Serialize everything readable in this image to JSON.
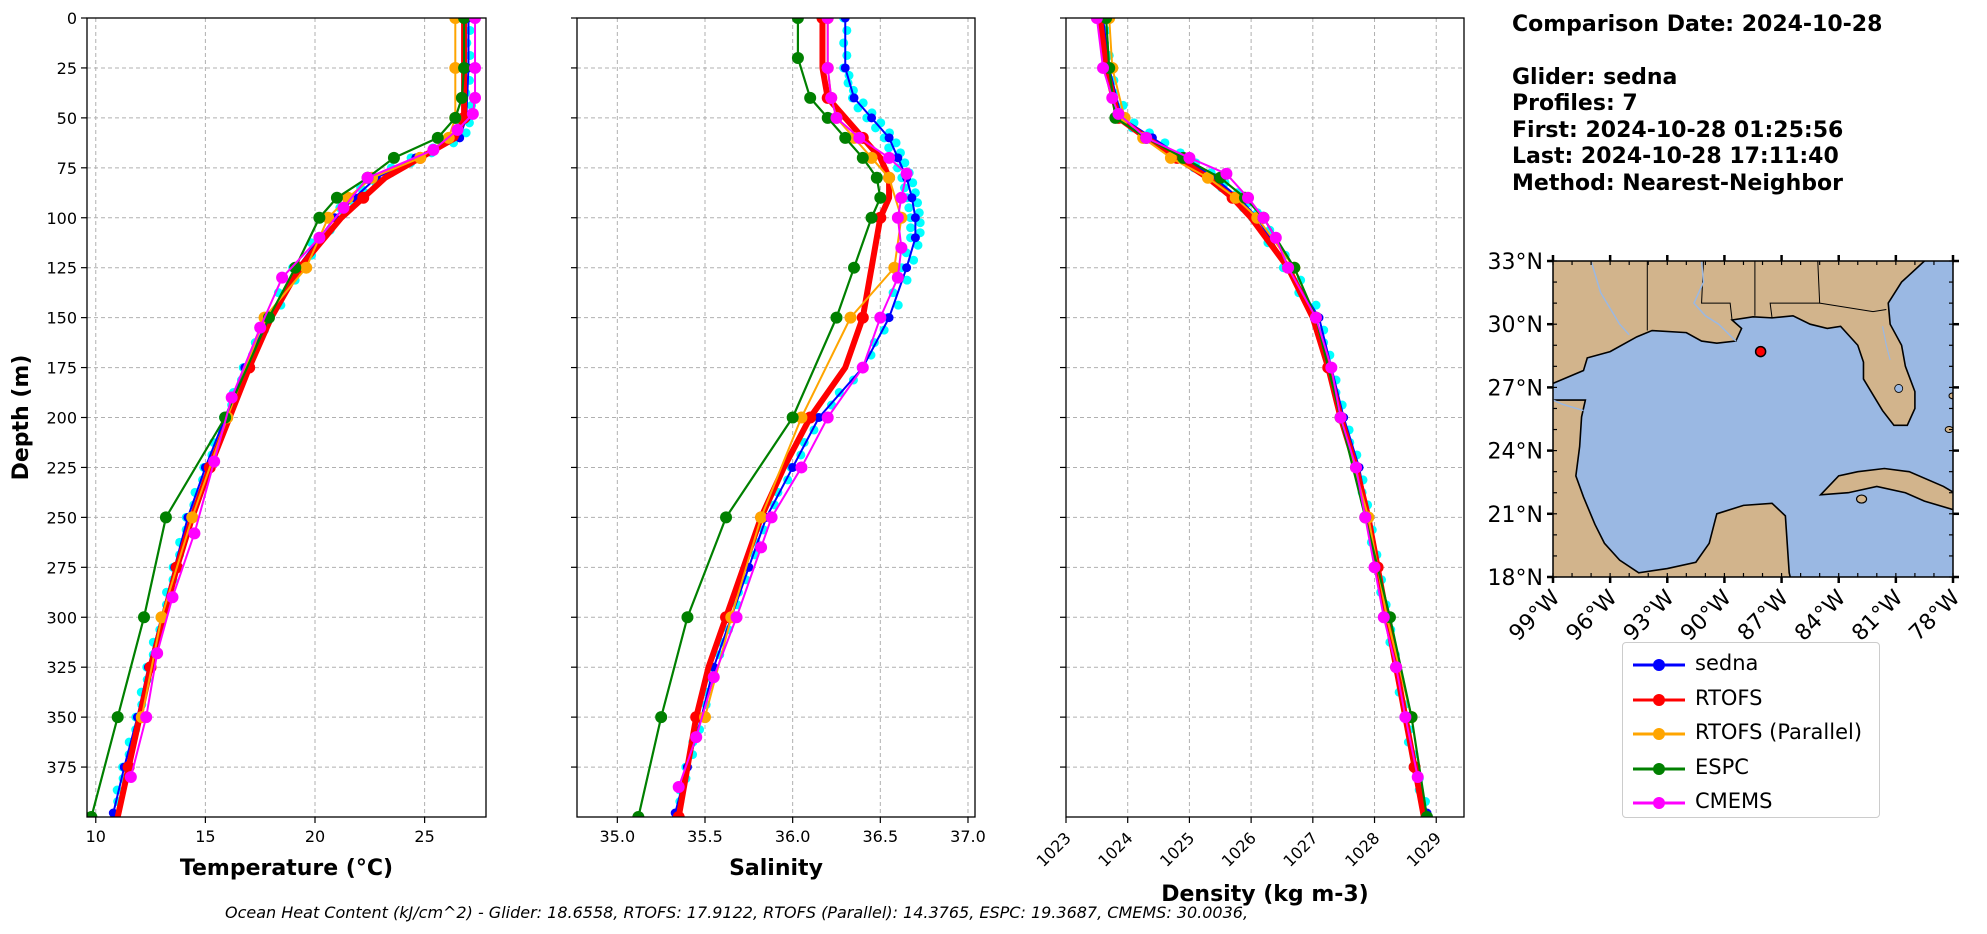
{
  "info": {
    "comparison_date": "Comparison Date: 2024-10-28",
    "glider": "Glider: sedna",
    "profiles": "Profiles: 7",
    "first": "First: 2024-10-28 01:25:56",
    "last": "Last: 2024-10-28 17:11:40",
    "method": "Method: Nearest-Neighbor"
  },
  "footer": "Ocean Heat Content (kJ/cm^2) - Glider: 18.6558,  RTOFS: 17.9122,  RTOFS (Parallel): 14.3765,  ESPC: 19.3687,  CMEMS: 30.0036,",
  "colors": {
    "sedna": "#0000ff",
    "sedna_points": "#00ffff",
    "rtofs": "#ff0000",
    "rtofs_parallel": "#ffa500",
    "espc": "#008000",
    "cmems": "#ff00ff",
    "ocean": "#9ab8e3",
    "land": "#d2b48c",
    "grid": "#b0b0b0"
  },
  "legend": [
    {
      "name": "sedna",
      "color": "#0000ff"
    },
    {
      "name": "RTOFS",
      "color": "#ff0000"
    },
    {
      "name": "RTOFS (Parallel)",
      "color": "#ffa500"
    },
    {
      "name": "ESPC",
      "color": "#008000"
    },
    {
      "name": "CMEMS",
      "color": "#ff00ff"
    }
  ],
  "chart_data": [
    {
      "type": "line",
      "xlabel": "Temperature (°C)",
      "ylabel": "Depth (m)",
      "xlim": [
        9.6,
        27.8
      ],
      "ylim": [
        400,
        0
      ],
      "xticks": [
        "10",
        "15",
        "20",
        "25"
      ],
      "yticks": [
        "0",
        "25",
        "50",
        "75",
        "100",
        "125",
        "150",
        "175",
        "200",
        "225",
        "250",
        "275",
        "300",
        "325",
        "350",
        "375"
      ],
      "grid": true,
      "series": [
        {
          "name": "sedna",
          "depth": [
            0,
            25,
            50,
            60,
            70,
            80,
            90,
            100,
            125,
            150,
            175,
            200,
            225,
            250,
            275,
            300,
            325,
            350,
            375,
            398
          ],
          "values": [
            27.0,
            27.0,
            26.9,
            26.6,
            24.6,
            22.8,
            21.8,
            20.9,
            19.2,
            17.9,
            16.8,
            15.9,
            15.0,
            14.2,
            13.6,
            13.0,
            12.4,
            11.9,
            11.3,
            10.8
          ]
        },
        {
          "name": "RTOFS",
          "depth": [
            0,
            25,
            50,
            60,
            70,
            80,
            90,
            100,
            125,
            150,
            175,
            200,
            225,
            250,
            275,
            300,
            325,
            350,
            375,
            400
          ],
          "values": [
            26.8,
            26.8,
            26.8,
            26.4,
            24.8,
            23.2,
            22.2,
            21.2,
            19.3,
            18.0,
            17.0,
            16.1,
            15.2,
            14.4,
            13.7,
            13.1,
            12.5,
            12.0,
            11.5,
            11.0
          ]
        },
        {
          "name": "RTOFS (Parallel)",
          "depth": [
            0,
            25,
            50,
            60,
            70,
            80,
            90,
            100,
            125,
            150,
            200,
            250,
            300,
            350
          ],
          "values": [
            26.4,
            26.4,
            26.4,
            26.1,
            24.8,
            22.6,
            21.5,
            20.6,
            19.6,
            17.7,
            16.0,
            14.4,
            13.0,
            12.1
          ]
        },
        {
          "name": "ESPC",
          "depth": [
            0,
            25,
            40,
            50,
            60,
            70,
            80,
            90,
            100,
            125,
            150,
            200,
            250,
            300,
            350,
            400
          ],
          "values": [
            26.8,
            26.8,
            26.7,
            26.4,
            25.6,
            23.6,
            22.4,
            21.0,
            20.2,
            19.1,
            17.9,
            15.9,
            13.2,
            12.2,
            11.0,
            9.8
          ]
        },
        {
          "name": "CMEMS",
          "depth": [
            0,
            25,
            40,
            48,
            56,
            66,
            80,
            95,
            110,
            130,
            155,
            190,
            222,
            258,
            290,
            318,
            350,
            380
          ],
          "values": [
            27.3,
            27.3,
            27.3,
            27.2,
            26.5,
            25.4,
            22.4,
            21.3,
            20.2,
            18.5,
            17.5,
            16.2,
            15.4,
            14.5,
            13.5,
            12.8,
            12.3,
            11.6
          ]
        }
      ]
    },
    {
      "type": "line",
      "xlabel": "Salinity",
      "ylabel": "",
      "xlim": [
        34.77,
        37.04
      ],
      "ylim": [
        400,
        0
      ],
      "xticks": [
        "35.0",
        "35.5",
        "36.0",
        "36.5",
        "37.0"
      ],
      "grid": true,
      "series": [
        {
          "name": "sedna",
          "depth": [
            0,
            25,
            40,
            50,
            60,
            70,
            80,
            90,
            100,
            110,
            125,
            150,
            175,
            200,
            225,
            250,
            275,
            300,
            325,
            350,
            375,
            398
          ],
          "values": [
            36.3,
            36.3,
            36.35,
            36.45,
            36.55,
            36.6,
            36.65,
            36.68,
            36.7,
            36.7,
            36.65,
            36.55,
            36.4,
            36.15,
            36.0,
            35.85,
            35.75,
            35.65,
            35.55,
            35.48,
            35.4,
            35.33
          ]
        },
        {
          "name": "RTOFS",
          "depth": [
            0,
            25,
            40,
            50,
            60,
            70,
            80,
            90,
            100,
            125,
            150,
            175,
            200,
            225,
            250,
            275,
            300,
            325,
            350,
            375,
            400
          ],
          "values": [
            36.17,
            36.17,
            36.2,
            36.3,
            36.4,
            36.5,
            36.55,
            36.55,
            36.5,
            36.45,
            36.4,
            36.3,
            36.1,
            35.95,
            35.82,
            35.72,
            35.62,
            35.52,
            35.45,
            35.4,
            35.35
          ]
        },
        {
          "name": "RTOFS (Parallel)",
          "depth": [
            0,
            25,
            40,
            50,
            60,
            70,
            80,
            100,
            125,
            150,
            200,
            250,
            300,
            350
          ],
          "values": [
            36.2,
            36.2,
            36.22,
            36.25,
            36.35,
            36.45,
            36.55,
            36.62,
            36.58,
            36.33,
            36.05,
            35.82,
            35.65,
            35.5
          ]
        },
        {
          "name": "ESPC",
          "depth": [
            0,
            20,
            40,
            50,
            60,
            70,
            80,
            90,
            100,
            125,
            150,
            200,
            250,
            300,
            350,
            400
          ],
          "values": [
            36.03,
            36.03,
            36.1,
            36.2,
            36.3,
            36.4,
            36.48,
            36.5,
            36.45,
            36.35,
            36.25,
            36.0,
            35.62,
            35.4,
            35.25,
            35.12
          ]
        },
        {
          "name": "CMEMS",
          "depth": [
            0,
            25,
            40,
            50,
            60,
            70,
            78,
            90,
            100,
            115,
            130,
            150,
            175,
            200,
            225,
            250,
            265,
            300,
            330,
            360,
            385
          ],
          "values": [
            36.2,
            36.2,
            36.22,
            36.25,
            36.38,
            36.55,
            36.65,
            36.62,
            36.6,
            36.62,
            36.6,
            36.5,
            36.4,
            36.2,
            36.05,
            35.88,
            35.82,
            35.68,
            35.55,
            35.45,
            35.35
          ]
        }
      ]
    },
    {
      "type": "line",
      "xlabel": "Density (kg m-3)",
      "ylabel": "",
      "xlim": [
        1023.0,
        1029.45
      ],
      "ylim": [
        400,
        0
      ],
      "xticks": [
        "1023",
        "1024",
        "1025",
        "1026",
        "1027",
        "1028",
        "1029"
      ],
      "grid": true,
      "series": [
        {
          "name": "sedna",
          "depth": [
            0,
            25,
            50,
            60,
            70,
            80,
            90,
            100,
            125,
            150,
            175,
            200,
            225,
            250,
            275,
            300,
            325,
            350,
            375,
            398
          ],
          "values": [
            1023.6,
            1023.7,
            1023.9,
            1024.4,
            1024.9,
            1025.4,
            1025.8,
            1026.1,
            1026.6,
            1027.1,
            1027.3,
            1027.5,
            1027.75,
            1027.9,
            1028.05,
            1028.2,
            1028.35,
            1028.5,
            1028.65,
            1028.85
          ]
        },
        {
          "name": "RTOFS",
          "depth": [
            0,
            25,
            50,
            60,
            70,
            80,
            90,
            100,
            125,
            150,
            175,
            200,
            225,
            250,
            275,
            300,
            325,
            350,
            375,
            400
          ],
          "values": [
            1023.55,
            1023.65,
            1023.85,
            1024.3,
            1024.8,
            1025.3,
            1025.7,
            1026.0,
            1026.6,
            1027.0,
            1027.25,
            1027.45,
            1027.7,
            1027.9,
            1028.05,
            1028.2,
            1028.35,
            1028.5,
            1028.65,
            1028.8
          ]
        },
        {
          "name": "RTOFS (Parallel)",
          "depth": [
            0,
            25,
            50,
            60,
            70,
            80,
            90,
            100,
            125,
            150,
            200,
            250,
            300,
            350
          ],
          "values": [
            1023.7,
            1023.75,
            1023.95,
            1024.25,
            1024.7,
            1025.3,
            1025.75,
            1026.1,
            1026.7,
            1027.05,
            1027.45,
            1027.9,
            1028.2,
            1028.6
          ]
        },
        {
          "name": "ESPC",
          "depth": [
            0,
            25,
            50,
            60,
            70,
            80,
            90,
            100,
            125,
            150,
            200,
            250,
            300,
            350,
            400
          ],
          "values": [
            1023.65,
            1023.7,
            1023.8,
            1024.3,
            1024.9,
            1025.5,
            1025.9,
            1026.2,
            1026.7,
            1027.05,
            1027.45,
            1027.85,
            1028.25,
            1028.6,
            1028.85
          ]
        },
        {
          "name": "CMEMS",
          "depth": [
            0,
            25,
            40,
            48,
            60,
            70,
            78,
            90,
            100,
            110,
            125,
            150,
            175,
            200,
            225,
            250,
            275,
            300,
            325,
            350,
            380
          ],
          "values": [
            1023.5,
            1023.6,
            1023.75,
            1023.85,
            1024.3,
            1025.0,
            1025.6,
            1025.95,
            1026.2,
            1026.4,
            1026.6,
            1027.05,
            1027.3,
            1027.45,
            1027.7,
            1027.85,
            1028.0,
            1028.15,
            1028.35,
            1028.5,
            1028.7
          ]
        }
      ]
    }
  ],
  "map": {
    "lat_labels": [
      "33°N",
      "30°N",
      "27°N",
      "24°N",
      "21°N",
      "18°N"
    ],
    "lon_labels": [
      "99°W",
      "96°W",
      "93°W",
      "90°W",
      "87°W",
      "84°W",
      "81°W",
      "78°W"
    ],
    "extent": {
      "lon": [
        -99,
        -78
      ],
      "lat": [
        18,
        33
      ]
    },
    "glider_location": {
      "lon": -88.1,
      "lat": 28.7
    }
  }
}
